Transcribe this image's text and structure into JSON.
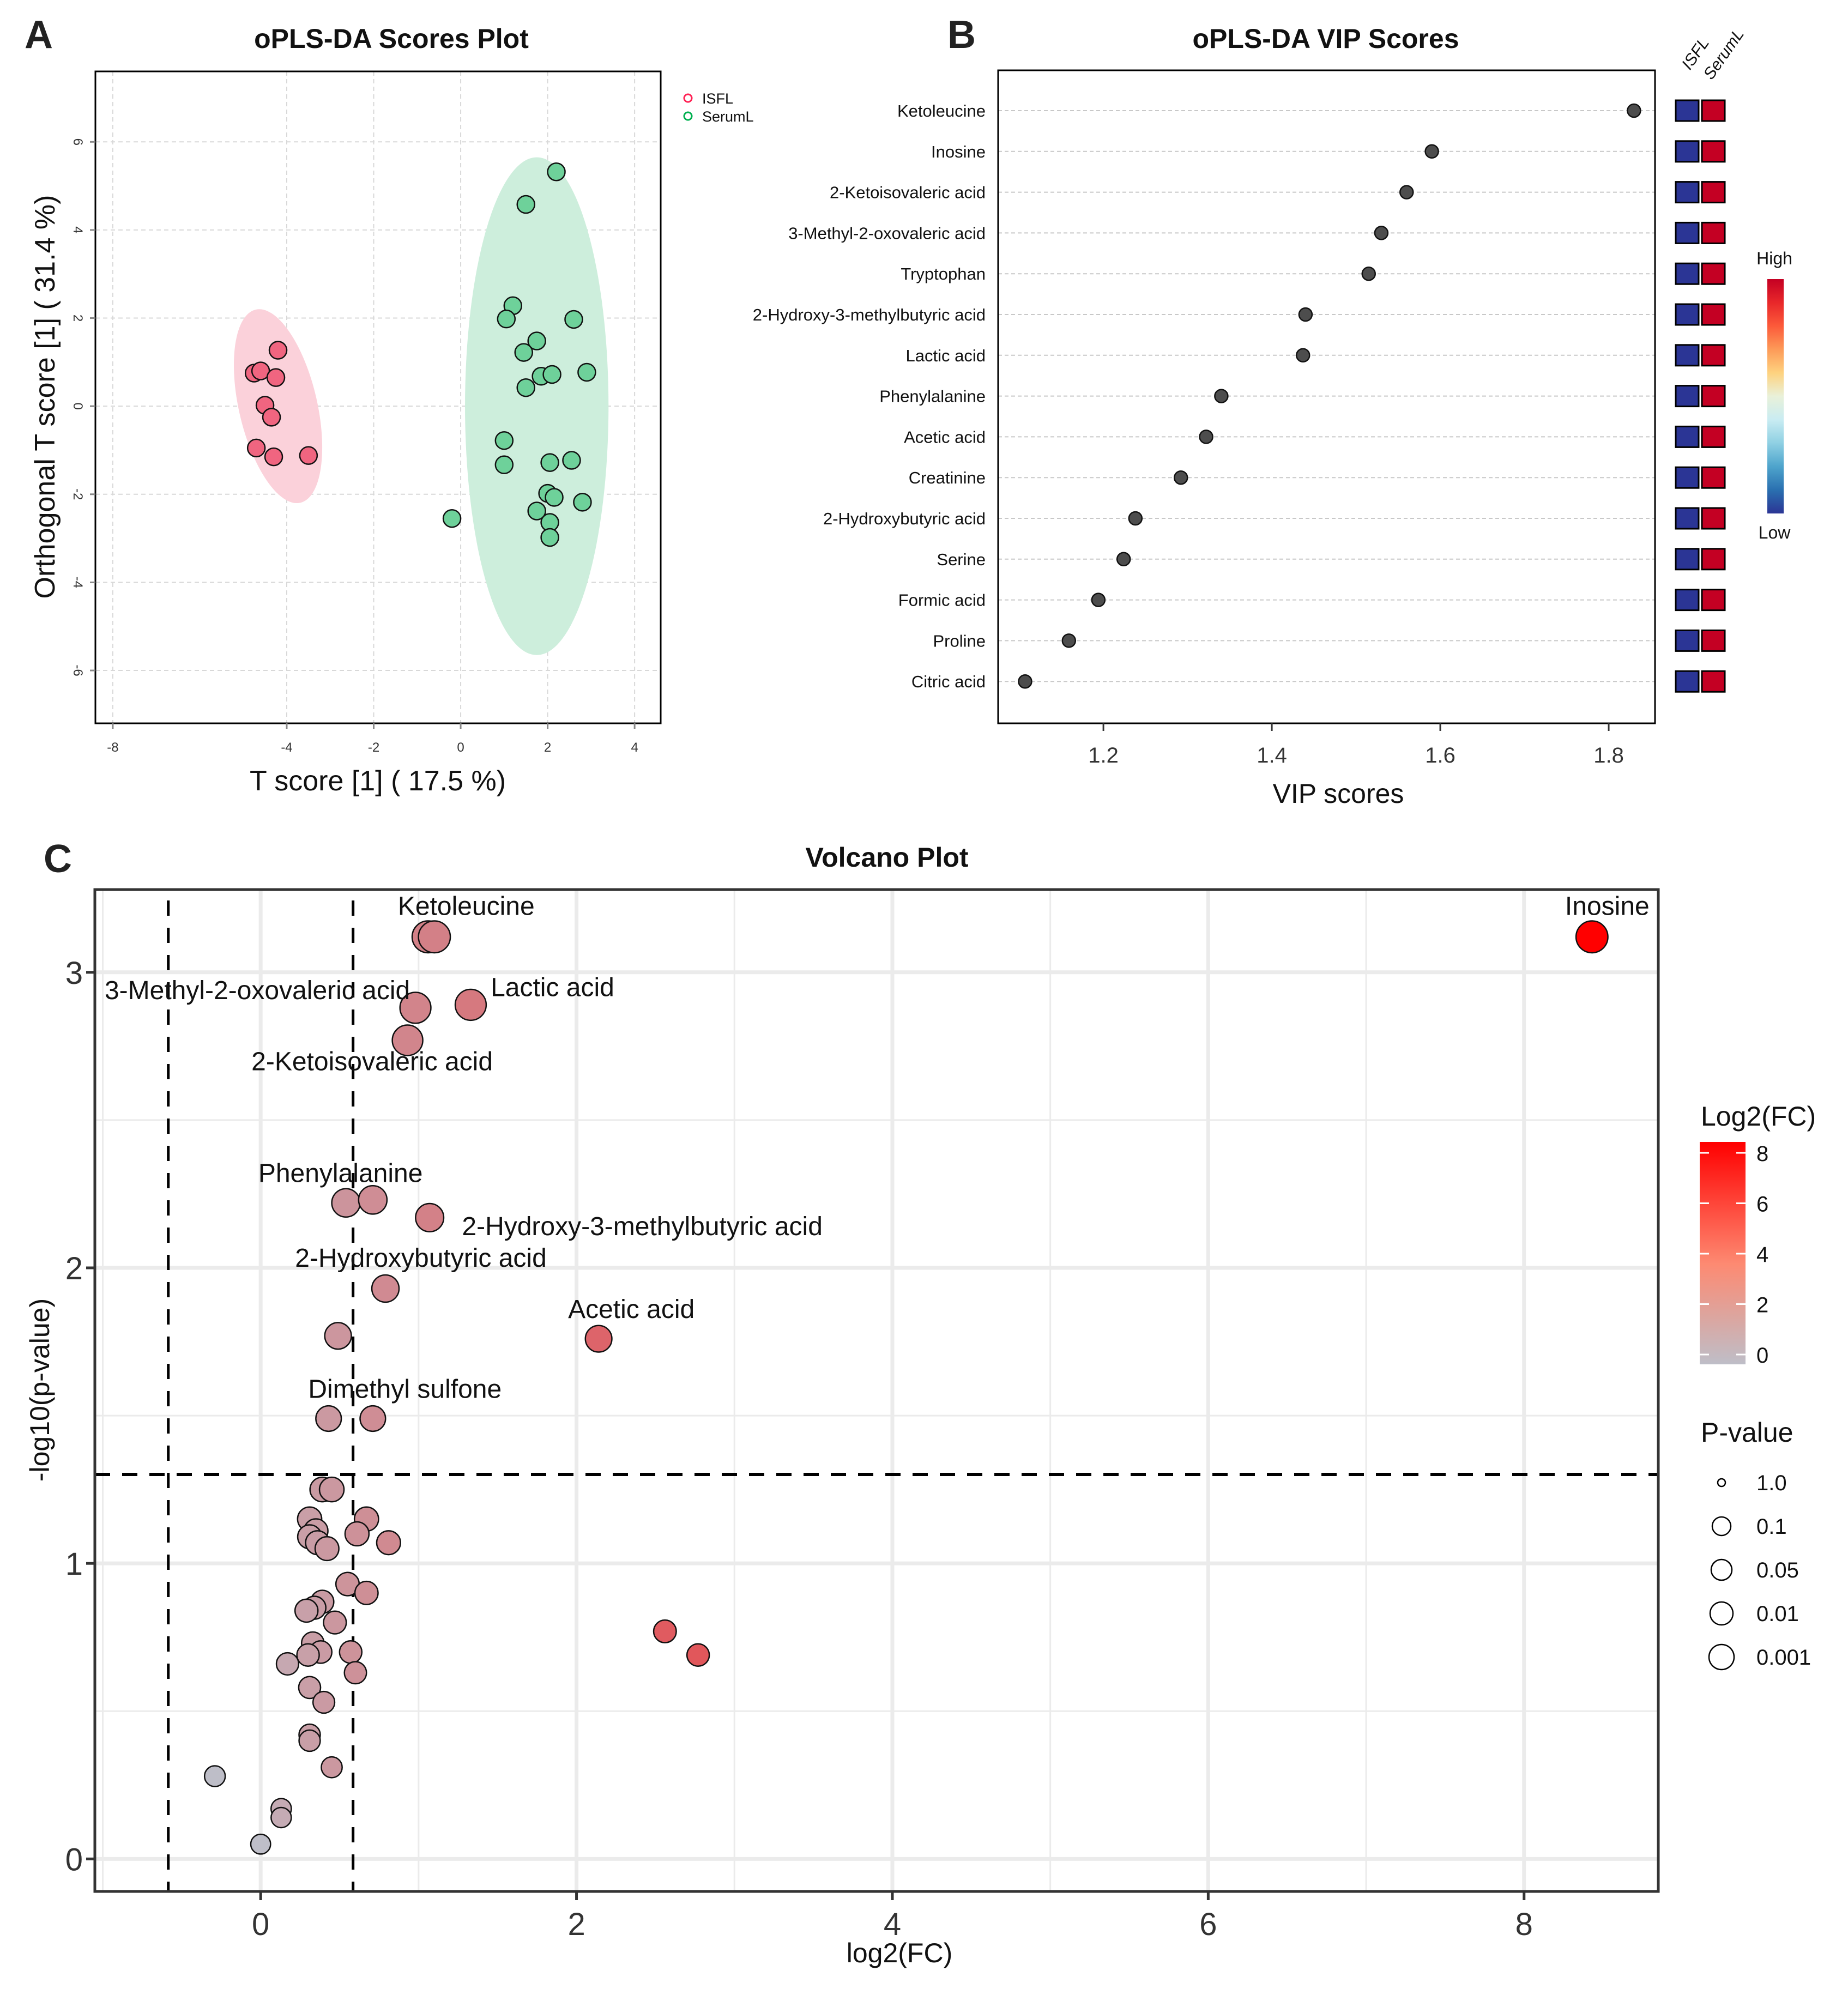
{
  "panels": {
    "a": "A",
    "b": "B",
    "c": "C"
  },
  "chart_data": [
    {
      "type": "scatter",
      "title": "oPLS-DA Scores Plot",
      "xlabel": "T score [1] ( 17.5 %)",
      "ylabel": "Orthogonal T score [1] ( 31.4 %)",
      "xlim": [
        -8.4,
        4.6
      ],
      "ylim": [
        -7.2,
        7.6
      ],
      "xticks": [
        "-8",
        "-4",
        "-2",
        "0",
        "2",
        "4"
      ],
      "xtick_values": [
        -8,
        -4,
        -2,
        0,
        2,
        4
      ],
      "yticks": [
        "6",
        "4",
        "2",
        "0",
        "-2",
        "-4",
        "-6"
      ],
      "ytick_values": [
        6,
        4,
        2,
        0,
        -2,
        -4,
        -6
      ],
      "grid": true,
      "legend_position": "top-right",
      "series": [
        {
          "name": "ISFL",
          "color": "#f06580",
          "legend_color": "#ff2255",
          "ellipse_color": "#fbd1da",
          "ellipse": {
            "cx": -4.2,
            "cy": 0,
            "rx": 0.9,
            "ry": 2.25,
            "rotate_deg": -13
          },
          "points": [
            [
              -4.2,
              1.27
            ],
            [
              -4.75,
              0.75
            ],
            [
              -4.6,
              0.8
            ],
            [
              -4.25,
              0.65
            ],
            [
              -4.5,
              0.02
            ],
            [
              -4.35,
              -0.25
            ],
            [
              -4.7,
              -0.95
            ],
            [
              -4.3,
              -1.15
            ],
            [
              -3.5,
              -1.12
            ]
          ]
        },
        {
          "name": "SerumL",
          "color": "#6ed19a",
          "legend_color": "#00b050",
          "ellipse_color": "#cdeedc",
          "ellipse": {
            "cx": 1.75,
            "cy": 0,
            "rx": 1.65,
            "ry": 5.65,
            "rotate_deg": 0
          },
          "points": [
            [
              2.2,
              5.32
            ],
            [
              1.5,
              4.58
            ],
            [
              1.2,
              2.28
            ],
            [
              1.05,
              1.98
            ],
            [
              2.6,
              1.97
            ],
            [
              1.75,
              1.48
            ],
            [
              1.45,
              1.22
            ],
            [
              1.85,
              0.68
            ],
            [
              2.1,
              0.72
            ],
            [
              2.9,
              0.77
            ],
            [
              1.5,
              0.42
            ],
            [
              1.0,
              -0.78
            ],
            [
              1.0,
              -1.33
            ],
            [
              2.05,
              -1.28
            ],
            [
              2.55,
              -1.23
            ],
            [
              2.0,
              -1.98
            ],
            [
              2.15,
              -2.07
            ],
            [
              2.8,
              -2.18
            ],
            [
              1.75,
              -2.38
            ],
            [
              2.05,
              -2.64
            ],
            [
              2.05,
              -2.98
            ],
            [
              -0.2,
              -2.55
            ]
          ]
        }
      ]
    },
    {
      "type": "scatter",
      "subtype": "dot-plot",
      "title": "oPLS-DA VIP Scores",
      "xlabel": "VIP scores",
      "ylabel": "",
      "xlim": [
        1.075,
        1.855
      ],
      "xticks": [
        "1.2",
        "1.4",
        "1.6",
        "1.8"
      ],
      "xtick_values": [
        1.2,
        1.4,
        1.6,
        1.8
      ],
      "grid": true,
      "categories": [
        "Ketoleucine",
        "Inosine",
        "2-Ketoisovaleric acid",
        "3-Methyl-2-oxovaleric acid",
        "Tryptophan",
        "2-Hydroxy-3-methylbutyric acid",
        "Lactic acid",
        "Phenylalanine",
        "Acetic acid",
        "Creatinine",
        "2-Hydroxybutyric acid",
        "Serine",
        "Formic acid",
        "Proline",
        "Citric acid"
      ],
      "values": [
        1.83,
        1.59,
        1.56,
        1.53,
        1.515,
        1.44,
        1.437,
        1.34,
        1.322,
        1.292,
        1.238,
        1.224,
        1.194,
        1.159,
        1.107
      ],
      "heatmap": {
        "columns": [
          "ISFL",
          "SerumL"
        ],
        "cell_colors": [
          "#2b3595",
          "#c40023"
        ],
        "values_rank": [
          "Low",
          "High"
        ],
        "legend_high": "High",
        "legend_low": "Low",
        "legend_gradient": [
          "#c40023",
          "#e8272a",
          "#fc5a3a",
          "#fd9a58",
          "#fed27f",
          "#e9f1d9",
          "#c9ecf2",
          "#8fd0e3",
          "#4ea4cc",
          "#2a70b0",
          "#2b3595"
        ]
      }
    },
    {
      "type": "scatter",
      "subtype": "volcano",
      "title": "Volcano Plot",
      "xlabel": "log2(FC)",
      "ylabel": "-log10(p-value)",
      "xlim": [
        -1.05,
        8.85
      ],
      "ylim": [
        -0.11,
        3.28
      ],
      "xticks": [
        "0",
        "2",
        "4",
        "6",
        "8"
      ],
      "xtick_values": [
        0,
        2,
        4,
        6,
        8
      ],
      "yticks": [
        "0",
        "1",
        "2",
        "3"
      ],
      "ytick_values": [
        0,
        1,
        2,
        3
      ],
      "grid": true,
      "thresholds": {
        "fc_low": -0.585,
        "fc_high": 0.585,
        "p": 1.301
      },
      "color_legend": {
        "title": "Log2(FC)",
        "ticks": [
          "8",
          "6",
          "4",
          "2",
          "0"
        ],
        "tick_values": [
          8,
          6,
          4,
          2,
          0
        ],
        "low_color": "#bebec8",
        "high_color": "#ff0000"
      },
      "size_legend": {
        "title": "P-value",
        "labels": [
          "1.0",
          "0.1",
          "0.05",
          "0.01",
          "0.001"
        ]
      },
      "points": [
        {
          "x": 8.43,
          "y": 3.12,
          "label": "Inosine"
        },
        {
          "x": 1.06,
          "y": 3.12,
          "label": "Ketoleucine"
        },
        {
          "x": 1.1,
          "y": 3.12,
          "label": ""
        },
        {
          "x": 0.98,
          "y": 2.88,
          "label": "3-Methyl-2-oxovaleric acid"
        },
        {
          "x": 1.33,
          "y": 2.89,
          "label": "Lactic acid"
        },
        {
          "x": 0.93,
          "y": 2.77,
          "label": "2-Ketoisovaleric acid"
        },
        {
          "x": 0.54,
          "y": 2.22,
          "label": "Phenylalanine"
        },
        {
          "x": 0.71,
          "y": 2.23,
          "label": ""
        },
        {
          "x": 1.07,
          "y": 2.17,
          "label": "2-Hydroxy-3-methylbutyric acid"
        },
        {
          "x": 0.79,
          "y": 1.93,
          "label": "2-Hydroxybutyric acid"
        },
        {
          "x": 0.49,
          "y": 1.77,
          "label": ""
        },
        {
          "x": 2.14,
          "y": 1.76,
          "label": "Acetic acid"
        },
        {
          "x": 0.43,
          "y": 1.49,
          "label": "Dimethyl sulfone"
        },
        {
          "x": 0.71,
          "y": 1.49,
          "label": ""
        },
        {
          "x": 0.39,
          "y": 1.25,
          "label": ""
        },
        {
          "x": 0.45,
          "y": 1.25,
          "label": ""
        },
        {
          "x": 0.31,
          "y": 1.15,
          "label": ""
        },
        {
          "x": 0.67,
          "y": 1.15,
          "label": ""
        },
        {
          "x": 0.35,
          "y": 1.11,
          "label": ""
        },
        {
          "x": 0.31,
          "y": 1.09,
          "label": ""
        },
        {
          "x": 0.61,
          "y": 1.1,
          "label": ""
        },
        {
          "x": 0.36,
          "y": 1.07,
          "label": ""
        },
        {
          "x": 0.42,
          "y": 1.05,
          "label": ""
        },
        {
          "x": 0.81,
          "y": 1.07,
          "label": ""
        },
        {
          "x": 0.55,
          "y": 0.93,
          "label": ""
        },
        {
          "x": 0.67,
          "y": 0.9,
          "label": ""
        },
        {
          "x": 0.39,
          "y": 0.87,
          "label": ""
        },
        {
          "x": 0.34,
          "y": 0.85,
          "label": ""
        },
        {
          "x": 0.29,
          "y": 0.84,
          "label": ""
        },
        {
          "x": 0.47,
          "y": 0.8,
          "label": ""
        },
        {
          "x": 0.33,
          "y": 0.73,
          "label": ""
        },
        {
          "x": 0.38,
          "y": 0.7,
          "label": ""
        },
        {
          "x": 0.3,
          "y": 0.69,
          "label": ""
        },
        {
          "x": 0.57,
          "y": 0.7,
          "label": ""
        },
        {
          "x": 0.17,
          "y": 0.66,
          "label": ""
        },
        {
          "x": 0.6,
          "y": 0.63,
          "label": ""
        },
        {
          "x": 0.31,
          "y": 0.58,
          "label": ""
        },
        {
          "x": 0.4,
          "y": 0.53,
          "label": ""
        },
        {
          "x": 0.31,
          "y": 0.42,
          "label": ""
        },
        {
          "x": 0.31,
          "y": 0.4,
          "label": ""
        },
        {
          "x": 0.45,
          "y": 0.31,
          "label": ""
        },
        {
          "x": -0.29,
          "y": 0.28,
          "label": ""
        },
        {
          "x": 0.13,
          "y": 0.17,
          "label": ""
        },
        {
          "x": 0.13,
          "y": 0.14,
          "label": ""
        },
        {
          "x": 0.0,
          "y": 0.05,
          "label": ""
        },
        {
          "x": 2.56,
          "y": 0.77,
          "label": ""
        },
        {
          "x": 2.77,
          "y": 0.69,
          "label": ""
        }
      ]
    }
  ]
}
